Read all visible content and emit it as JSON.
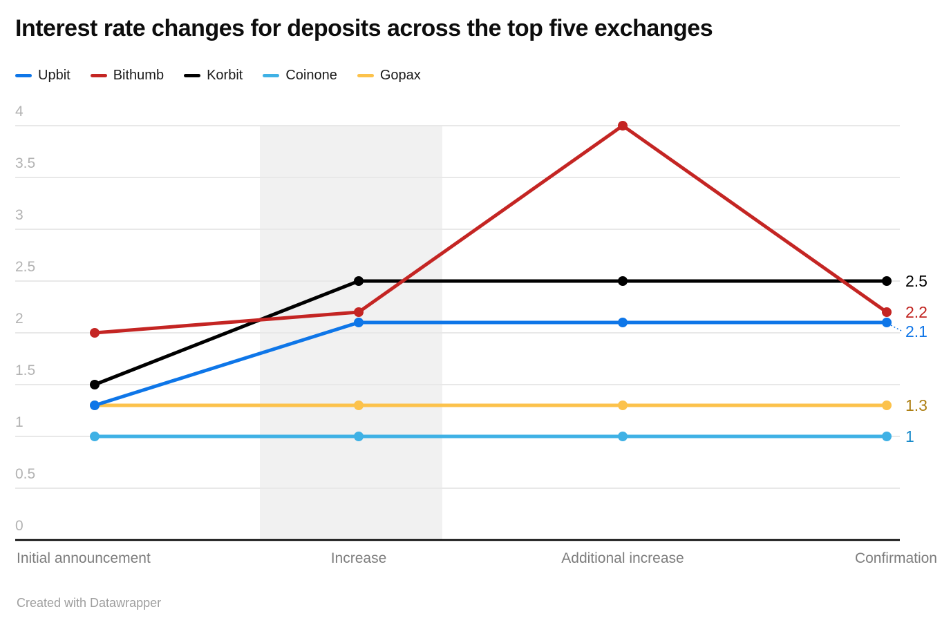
{
  "title": "Interest rate changes for deposits across the top five exchanges",
  "footer": "Created with Datawrapper",
  "legend": {
    "items": [
      {
        "label": "Upbit",
        "color": "#0e76e8"
      },
      {
        "label": "Bithumb",
        "color": "#c42523"
      },
      {
        "label": "Korbit",
        "color": "#000000"
      },
      {
        "label": "Coinone",
        "color": "#3fb1e5"
      },
      {
        "label": "Gopax",
        "color": "#fcc24b"
      }
    ]
  },
  "chart_data": {
    "type": "line",
    "title": "Interest rate changes for deposits across the top five exchanges",
    "categories": [
      "Initial announcement",
      "Increase",
      "Additional increase",
      "Confirmation"
    ],
    "series": [
      {
        "name": "Gopax",
        "color": "#fcc24b",
        "label_color": "#ad7f13",
        "values": [
          1.3,
          1.3,
          1.3,
          1.3
        ],
        "end_label": "1.3"
      },
      {
        "name": "Coinone",
        "color": "#3fb1e5",
        "label_color": "#1588c9",
        "values": [
          1,
          1,
          1,
          1
        ],
        "end_label": "1"
      },
      {
        "name": "Korbit",
        "color": "#000000",
        "label_color": "#000000",
        "values": [
          1.5,
          2.5,
          2.5,
          2.5
        ],
        "end_label": "2.5"
      },
      {
        "name": "Bithumb",
        "color": "#c42523",
        "label_color": "#c0211d",
        "values": [
          2.0,
          2.2,
          4.0,
          2.2
        ],
        "end_label": "2.2"
      },
      {
        "name": "Upbit",
        "color": "#0e76e8",
        "label_color": "#0d74e7",
        "values": [
          1.3,
          2.1,
          2.1,
          2.1
        ],
        "end_label": "2.1"
      }
    ],
    "ylim": [
      0,
      4
    ],
    "yticks": [
      0,
      0.5,
      1,
      1.5,
      2,
      2.5,
      3,
      3.5,
      4
    ],
    "ytick_labels": [
      "0",
      "0.5",
      "1",
      "1.5",
      "2",
      "2.5",
      "3",
      "3.5",
      "4"
    ],
    "xlabel": "",
    "ylabel": "",
    "grid": "horizontal",
    "legend_position": "top",
    "highlight_band_category": "Increase",
    "colors": {
      "band": "#f1f1f1",
      "grid": "#e8e8e8",
      "axis": "#000000",
      "ytick_text": "#b2b2b2",
      "xtick_text": "#7d7d7d"
    }
  }
}
